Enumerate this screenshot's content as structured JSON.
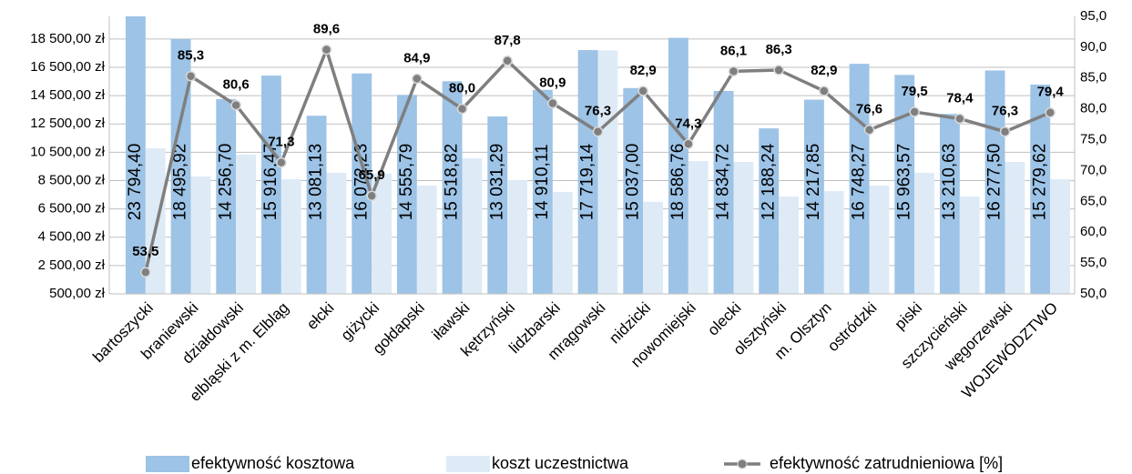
{
  "chart_data": {
    "type": "bar_line",
    "categories": [
      "bartoszycki",
      "braniewski",
      "działdowski",
      "elbląski z m. Elbląg",
      "ełcki",
      "giżycki",
      "gołdapski",
      "iławski",
      "kętrzyński",
      "lidzbarski",
      "mrągowski",
      "nidzicki",
      "nowomiejski",
      "olecki",
      "olsztyński",
      "m. Olsztyn",
      "ostródzki",
      "piski",
      "szczycieński",
      "węgorzewski",
      "WOJEWÓDZTWO"
    ],
    "series": [
      {
        "name": "efektywność kosztowa",
        "color": "#9dc3e6",
        "values": [
          23794.4,
          18495.92,
          14256.7,
          15916.47,
          13081.13,
          16072.23,
          14555.79,
          15518.82,
          13031.29,
          14910.11,
          17719.14,
          15037.0,
          18586.76,
          14834.72,
          12188.24,
          14217.85,
          16748.27,
          15963.57,
          13210.63,
          16277.5,
          15279.62
        ],
        "value_labels": [
          "23 794,40",
          "18 495,92",
          "14 256,70",
          "15 916,47",
          "13 081,13",
          "16 072,23",
          "14 555,79",
          "15 518,82",
          "13 031,29",
          "14 910,11",
          "17 719,14",
          "15 037,00",
          "18 586,76",
          "14 834,72",
          "12 188,24",
          "14 217,85",
          "16 748,27",
          "15 963,57",
          "13 210,63",
          "16 277,50",
          "15 279,62"
        ]
      },
      {
        "name": "koszt uczestnictwa",
        "color": "#deebf7",
        "values": [
          10780,
          8790,
          10330,
          8600,
          9050,
          9000,
          8150,
          10080,
          8530,
          7700,
          17700,
          7000,
          9880,
          9820,
          7380,
          7760,
          8150,
          9050,
          7380,
          9820,
          8600
        ]
      },
      {
        "name": "efektywność zatrudnieniowa [%]",
        "color": "#7f7f7f",
        "axis": "y2",
        "values": [
          53.5,
          85.3,
          80.6,
          71.3,
          89.6,
          65.9,
          84.9,
          80.0,
          87.8,
          80.9,
          76.3,
          82.9,
          74.3,
          86.1,
          86.3,
          82.9,
          76.6,
          79.5,
          78.4,
          76.3,
          79.4
        ],
        "value_labels": [
          "53,5",
          "85,3",
          "80,6",
          "71,3",
          "89,6",
          "65,9",
          "84,9",
          "80,0",
          "87,8",
          "80,9",
          "76,3",
          "82,9",
          "74,3",
          "86,1",
          "86,3",
          "82,9",
          "76,6",
          "79,5",
          "78,4",
          "76,3",
          "79,4"
        ]
      }
    ],
    "ylim": [
      500,
      20100
    ],
    "yticks": [
      {
        "value": 500,
        "label": "500,00 zł"
      },
      {
        "value": 2500,
        "label": "2 500,00 zł"
      },
      {
        "value": 4500,
        "label": "4 500,00 zł"
      },
      {
        "value": 6500,
        "label": "6 500,00 zł"
      },
      {
        "value": 8500,
        "label": "8 500,00 zł"
      },
      {
        "value": 10500,
        "label": "10 500,00 zł"
      },
      {
        "value": 12500,
        "label": "12 500,00 zł"
      },
      {
        "value": 14500,
        "label": "14 500,00 zł"
      },
      {
        "value": 16500,
        "label": "16 500,00 zł"
      },
      {
        "value": 18500,
        "label": "18 500,00 zł"
      }
    ],
    "y2lim": [
      50,
      95
    ],
    "y2ticks": [
      {
        "value": 50,
        "label": "50,0"
      },
      {
        "value": 55,
        "label": "55,0"
      },
      {
        "value": 60,
        "label": "60,0"
      },
      {
        "value": 65,
        "label": "65,0"
      },
      {
        "value": 70,
        "label": "70,0"
      },
      {
        "value": 75,
        "label": "75,0"
      },
      {
        "value": 80,
        "label": "80,0"
      },
      {
        "value": 85,
        "label": "85,0"
      },
      {
        "value": 90,
        "label": "90,0"
      },
      {
        "value": 95,
        "label": "95,0"
      }
    ],
    "grid": true,
    "legend": "bottom"
  }
}
